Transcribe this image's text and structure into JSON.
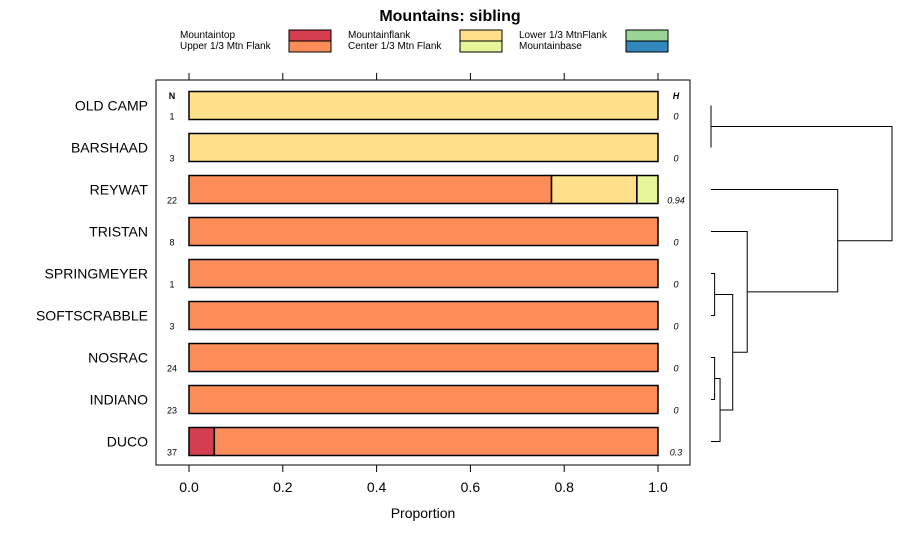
{
  "chart_data": {
    "type": "stacked-bar-horizontal",
    "title": "Mountains: sibling",
    "xlabel": "Proportion",
    "xlim": [
      0,
      1
    ],
    "x_ticks": [
      "0.0",
      "0.2",
      "0.4",
      "0.6",
      "0.8",
      "1.0"
    ],
    "n_header": "N",
    "h_header": "H",
    "legend": [
      {
        "label": "Mountaintop",
        "color": "#d53e4f"
      },
      {
        "label": "Upper 1/3 Mtn Flank",
        "color": "#fc8d59"
      },
      {
        "label": "Mountainflank",
        "color": "#fee08b"
      },
      {
        "label": "Center 1/3 Mtn Flank",
        "color": "#e6f598"
      },
      {
        "label": "Lower 1/3 MtnFlank",
        "color": "#99d594"
      },
      {
        "label": "Mountainbase",
        "color": "#3288bd"
      }
    ],
    "series_order": [
      "Mountaintop",
      "Upper 1/3 Mtn Flank",
      "Mountainflank",
      "Center 1/3 Mtn Flank",
      "Lower 1/3 MtnFlank",
      "Mountainbase"
    ],
    "rows": [
      {
        "label": "OLD CAMP",
        "n": "1",
        "h": "0",
        "values": [
          0,
          0,
          1,
          0,
          0,
          0
        ]
      },
      {
        "label": "BARSHAAD",
        "n": "3",
        "h": "0",
        "values": [
          0,
          0,
          1,
          0,
          0,
          0
        ]
      },
      {
        "label": "REYWAT",
        "n": "22",
        "h": "0.94",
        "values": [
          0,
          0.773,
          0.182,
          0.045,
          0,
          0
        ]
      },
      {
        "label": "TRISTAN",
        "n": "8",
        "h": "0",
        "values": [
          0,
          1,
          0,
          0,
          0,
          0
        ]
      },
      {
        "label": "SPRINGMEYER",
        "n": "1",
        "h": "0",
        "values": [
          0,
          1,
          0,
          0,
          0,
          0
        ]
      },
      {
        "label": "SOFTSCRABBLE",
        "n": "3",
        "h": "0",
        "values": [
          0,
          1,
          0,
          0,
          0,
          0
        ]
      },
      {
        "label": "NOSRAC",
        "n": "24",
        "h": "0",
        "values": [
          0,
          1,
          0,
          0,
          0,
          0
        ]
      },
      {
        "label": "INDIANO",
        "n": "23",
        "h": "0",
        "values": [
          0,
          1,
          0,
          0,
          0,
          0
        ]
      },
      {
        "label": "DUCO",
        "n": "37",
        "h": "0.3",
        "values": [
          0.054,
          0.946,
          0,
          0,
          0,
          0
        ]
      }
    ],
    "dendrogram": {
      "merges": [
        [
          0,
          1,
          0.0
        ],
        [
          4,
          5,
          0.02
        ],
        [
          6,
          7,
          0.02
        ],
        [
          -3,
          8,
          0.05
        ],
        [
          -2,
          -4,
          0.12
        ],
        [
          3,
          -5,
          0.2
        ],
        [
          2,
          -6,
          0.7
        ],
        [
          -1,
          -7,
          1.0
        ]
      ]
    }
  }
}
